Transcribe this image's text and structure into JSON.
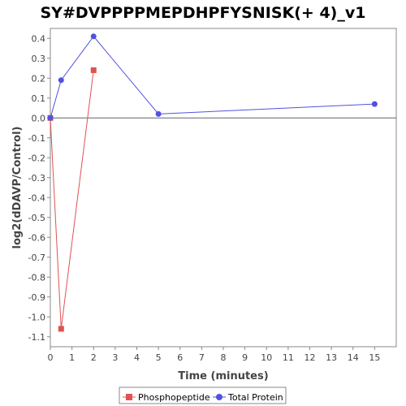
{
  "chart_data": {
    "type": "line",
    "title": "SY#DVPPPPMEPDHPFYSNISK(+ 4)_v1",
    "xlabel": "Time (minutes)",
    "ylabel": "log2(dDAVP/Control)",
    "xlim": [
      0,
      16
    ],
    "ylim": [
      -1.15,
      0.45
    ],
    "x_ticks": [
      0,
      1,
      2,
      3,
      4,
      5,
      6,
      7,
      8,
      9,
      10,
      11,
      12,
      13,
      14,
      15
    ],
    "y_ticks": [
      0.4,
      0.3,
      0.2,
      0.1,
      0.0,
      -0.1,
      -0.2,
      -0.3,
      -0.4,
      -0.5,
      -0.6,
      -0.7,
      -0.8,
      -0.9,
      -1.0,
      -1.1
    ],
    "grid": false,
    "legend_position": "bottom",
    "series": [
      {
        "name": "Phosphopeptide",
        "color": "#e05252",
        "marker": "square",
        "x": [
          0,
          0.5,
          2
        ],
        "y": [
          0.0,
          -1.06,
          0.24
        ]
      },
      {
        "name": "Total Protein",
        "color": "#5252e0",
        "marker": "circle",
        "x": [
          0,
          0.5,
          2,
          5,
          15
        ],
        "y": [
          0.0,
          0.19,
          0.41,
          0.02,
          0.07
        ]
      }
    ]
  }
}
